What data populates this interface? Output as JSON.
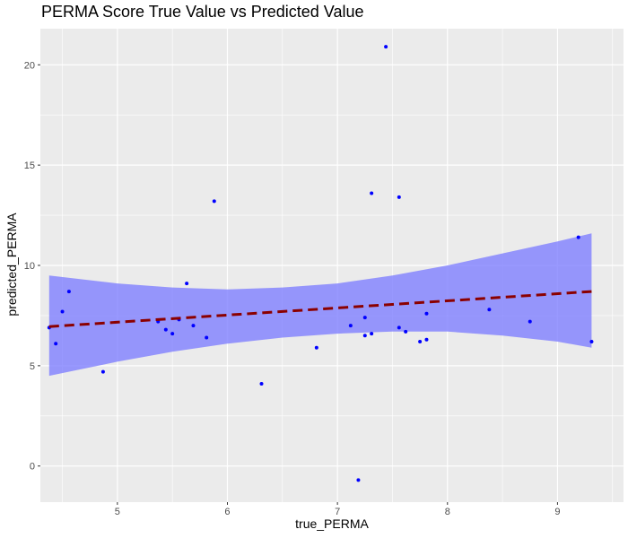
{
  "chart_data": {
    "type": "scatter",
    "title": "PERMA Score True Value vs Predicted Value",
    "xlabel": "true_PERMA",
    "ylabel": "predicted_PERMA",
    "xlim": [
      4.3,
      9.6
    ],
    "ylim": [
      -1.8,
      21.8
    ],
    "x_ticks": [
      5,
      6,
      7,
      8,
      9
    ],
    "y_ticks": [
      0,
      5,
      10,
      15,
      20
    ],
    "grid": true,
    "colors": {
      "panel_background": "#EBEBEB",
      "grid": "#FFFFFF",
      "points": "#0000FF",
      "trend_line": "#8B0000",
      "confidence_band": "#8080FF"
    },
    "points": [
      {
        "x": 4.38,
        "y": 6.9
      },
      {
        "x": 4.44,
        "y": 6.1
      },
      {
        "x": 4.5,
        "y": 7.7
      },
      {
        "x": 4.56,
        "y": 8.7
      },
      {
        "x": 4.87,
        "y": 4.7
      },
      {
        "x": 5.37,
        "y": 7.2
      },
      {
        "x": 5.44,
        "y": 6.8
      },
      {
        "x": 5.5,
        "y": 6.6
      },
      {
        "x": 5.56,
        "y": 7.3
      },
      {
        "x": 5.63,
        "y": 9.1
      },
      {
        "x": 5.69,
        "y": 7.0
      },
      {
        "x": 5.81,
        "y": 6.4
      },
      {
        "x": 5.88,
        "y": 13.2
      },
      {
        "x": 6.31,
        "y": 4.1
      },
      {
        "x": 6.81,
        "y": 5.9
      },
      {
        "x": 7.12,
        "y": 7.0
      },
      {
        "x": 7.19,
        "y": -0.7
      },
      {
        "x": 7.25,
        "y": 7.4
      },
      {
        "x": 7.25,
        "y": 6.5
      },
      {
        "x": 7.31,
        "y": 13.6
      },
      {
        "x": 7.31,
        "y": 6.6
      },
      {
        "x": 7.44,
        "y": 20.9
      },
      {
        "x": 7.56,
        "y": 13.4
      },
      {
        "x": 7.56,
        "y": 6.9
      },
      {
        "x": 7.62,
        "y": 6.7
      },
      {
        "x": 7.75,
        "y": 6.2
      },
      {
        "x": 7.81,
        "y": 7.6
      },
      {
        "x": 7.81,
        "y": 6.3
      },
      {
        "x": 8.38,
        "y": 7.8
      },
      {
        "x": 8.75,
        "y": 7.2
      },
      {
        "x": 9.19,
        "y": 11.4
      },
      {
        "x": 9.31,
        "y": 6.2
      }
    ],
    "trend_line": {
      "method": "linear",
      "style": "dashed",
      "points": [
        {
          "x": 4.38,
          "y": 6.95
        },
        {
          "x": 9.31,
          "y": 8.7
        }
      ]
    },
    "confidence_band": {
      "x": [
        4.38,
        5.0,
        5.5,
        6.0,
        6.5,
        7.0,
        7.5,
        8.0,
        8.5,
        9.0,
        9.31
      ],
      "lower": [
        4.5,
        5.2,
        5.7,
        6.1,
        6.4,
        6.6,
        6.7,
        6.7,
        6.5,
        6.2,
        5.9
      ],
      "upper": [
        9.5,
        9.1,
        8.9,
        8.8,
        8.9,
        9.1,
        9.5,
        10.0,
        10.6,
        11.2,
        11.6
      ]
    }
  }
}
